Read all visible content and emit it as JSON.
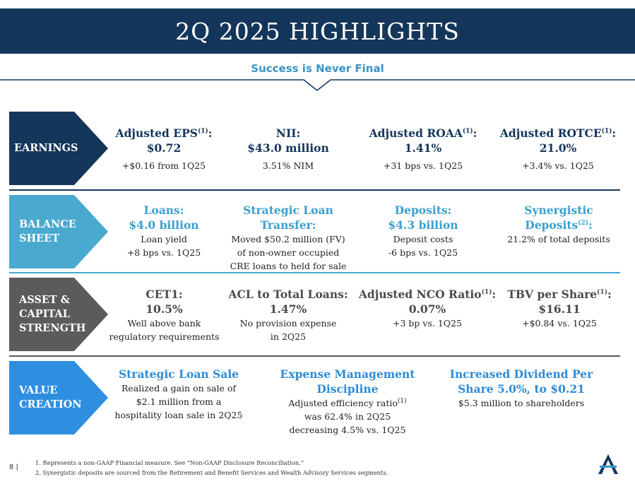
{
  "header": {
    "title": "2Q 2025 HIGHLIGHTS",
    "subtitle": "Success is Never Final"
  },
  "colors": {
    "navy": "#14365a",
    "teal": "#4aa9cf",
    "grey": "#5b5b5b",
    "blue": "#2e8fe0",
    "accent": "#3a93c6"
  },
  "rows": {
    "earnings": {
      "label_lines": [
        "EARNINGS"
      ],
      "cells": [
        {
          "title": "Adjusted EPS",
          "sup": "(1)",
          "title_suffix": ":",
          "title2": "$0.72",
          "detail": "+$0.16 from 1Q25"
        },
        {
          "title": "NII:",
          "title2": "$43.0 million",
          "detail": "3.51% NIM"
        },
        {
          "title": "Adjusted ROAA",
          "sup": "(1)",
          "title_suffix": ":",
          "title2": "1.41%",
          "detail": "+31 bps vs. 1Q25"
        },
        {
          "title": "Adjusted ROTCE",
          "sup": "(1)",
          "title_suffix": ":",
          "title2": "21.0%",
          "detail": "+3.4% vs. 1Q25"
        }
      ]
    },
    "balance": {
      "label_lines": [
        "BALANCE",
        "SHEET"
      ],
      "cells": [
        {
          "title": "Loans:",
          "title2": "$4.0 billion",
          "detail": "Loan yield",
          "detail2": "+8 bps vs. 1Q25"
        },
        {
          "title": "Strategic Loan",
          "title2": "Transfer:",
          "detail": "Moved $50.2 million (FV)",
          "detail2": "of non-owner occupied",
          "detail3": "CRE loans to held for sale"
        },
        {
          "title": "Deposits:",
          "title2": "$4.3 billion",
          "detail": "Deposit costs",
          "detail2": "-6 bps vs. 1Q25"
        },
        {
          "title": "Synergistic",
          "title2": "Deposits",
          "sup": "(2)",
          "title_suffix": ":",
          "detail": "21.2% of total deposits"
        }
      ]
    },
    "asset": {
      "label_lines": [
        "ASSET &",
        "CAPITAL",
        "STRENGTH"
      ],
      "cells": [
        {
          "title": "CET1:",
          "title2": "10.5%",
          "detail": "Well above bank",
          "detail2": "regulatory requirements"
        },
        {
          "title": "ACL to Total Loans:",
          "title2": "1.47%",
          "detail": "No provision expense",
          "detail2": "in 2Q25"
        },
        {
          "title": "Adjusted NCO Ratio",
          "sup": "(1)",
          "title_suffix": ":",
          "title2": "0.07%",
          "detail": "+3 bp vs. 1Q25"
        },
        {
          "title": "TBV per Share",
          "sup": "(1)",
          "title_suffix": ":",
          "title2": "$16.11",
          "detail": "+$0.84 vs. 1Q25"
        }
      ]
    },
    "value": {
      "label_lines": [
        "VALUE",
        "CREATION"
      ],
      "cells": [
        {
          "title": "Strategic Loan Sale",
          "detail": "Realized a gain on sale of",
          "detail2": "$2.1 million from a",
          "detail3": "hospitality loan sale in 2Q25"
        },
        {
          "title": "Expense Management",
          "title2": "Discipline",
          "detail": "Adjusted efficiency ratio",
          "detail_sup": "(1)",
          "detail2": "was 62.4% in 2Q25",
          "detail3": "decreasing 4.5% vs. 1Q25"
        },
        {
          "title": "Increased Dividend Per",
          "title2": "Share 5.0%, to $0.21",
          "detail": "$5.3 million to shareholders"
        }
      ]
    }
  },
  "footer": {
    "page": "8",
    "note1": "1. Represents a non-GAAP Financial measure. See “Non-GAAP Disclosure Reconciliation.”",
    "note2": "2. Synergistic deposits are sourced from the Retirement and Benefit Services and Wealth Advisory Services segments."
  }
}
